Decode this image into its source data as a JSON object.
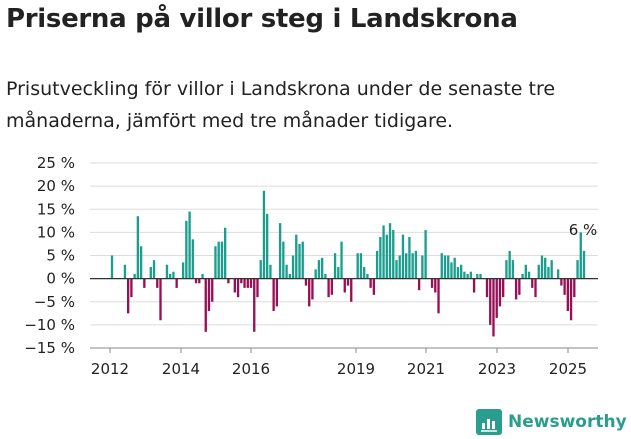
{
  "title": "Priserna på villor steg i Landskrona",
  "subtitle": "Prisutveckling för villor i Landskrona under de senaste tre månaderna, jämfört med tre månader tidigare.",
  "brand": "Newsworthy",
  "colors": {
    "positive": "#1a9e8e",
    "negative": "#990f55",
    "text": "#222222",
    "grid": "#dddddd",
    "brand": "#2a9d8f"
  },
  "chart_data": {
    "type": "bar",
    "ylim": [
      -15,
      25
    ],
    "y_ticks": [
      {
        "value": 25,
        "label": "25 %"
      },
      {
        "value": 20,
        "label": "20 %"
      },
      {
        "value": 15,
        "label": "15 %"
      },
      {
        "value": 10,
        "label": "10 %"
      },
      {
        "value": 5,
        "label": "5 %"
      },
      {
        "value": 0,
        "label": "0 %"
      },
      {
        "value": -5,
        "label": "−5 %"
      },
      {
        "value": -10,
        "label": "−10 %"
      },
      {
        "value": -15,
        "label": "−15 %"
      }
    ],
    "x_ticks": [
      "2012",
      "2014",
      "2016",
      "2019",
      "2021",
      "2023",
      "2025"
    ],
    "annotation": "6 %",
    "values": [
      5,
      0,
      0,
      0,
      3,
      -7.5,
      -4,
      1,
      13.5,
      7,
      -2,
      0,
      2.5,
      4,
      -2,
      -9,
      0,
      3,
      1,
      1.5,
      -2,
      0,
      3.5,
      12.5,
      14.5,
      8.5,
      -1,
      -1,
      1,
      -11.5,
      -7,
      -5,
      7,
      8,
      8,
      11,
      -1,
      0,
      -3,
      -4,
      -1,
      -2,
      -2,
      -2,
      -11.5,
      -4,
      4,
      19,
      14,
      3,
      -7,
      -6,
      12,
      8,
      3,
      1,
      5,
      9.5,
      7.5,
      8,
      -1.5,
      -6,
      -4.5,
      2,
      4,
      4.5,
      1,
      -4,
      -3.5,
      5.5,
      2.5,
      8,
      -3,
      -1.5,
      -5,
      0,
      5.5,
      5.5,
      2.5,
      1,
      -2,
      -3.5,
      6,
      9,
      11.5,
      9.5,
      12,
      10.5,
      4,
      5,
      9.5,
      5.5,
      9,
      5.5,
      6,
      -2.5,
      5,
      10.5,
      0,
      -2,
      -3,
      -7.5,
      5.5,
      5,
      5,
      3.5,
      4.5,
      2.5,
      3,
      1.5,
      1,
      1.5,
      -3,
      1,
      1,
      0,
      -4,
      -10,
      -12.5,
      -8.5,
      -6,
      -4,
      4,
      6,
      4,
      -4.5,
      -3.5,
      1,
      3,
      1.5,
      -2,
      -4,
      3,
      5,
      4.5,
      2.5,
      4,
      0,
      2,
      -1.5,
      -3.5,
      -7,
      -9,
      -4,
      4,
      10,
      6
    ]
  }
}
